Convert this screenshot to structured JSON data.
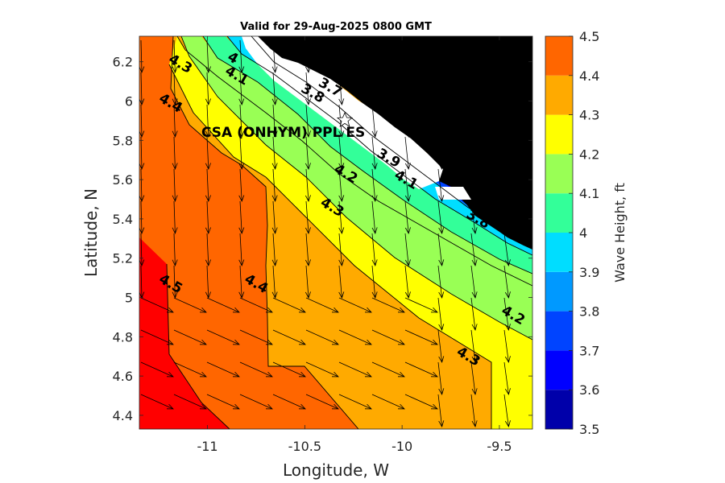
{
  "chart_data": {
    "type": "heatmap",
    "title": "Valid for 29-Aug-2025 0800 GMT",
    "xlabel": "Longitude, W",
    "ylabel": "Latitude, N",
    "xlim": [
      -11.35,
      -9.33
    ],
    "ylim": [
      4.33,
      6.33
    ],
    "x_ticks": [
      -11,
      -10.5,
      -10,
      -9.5
    ],
    "x_tick_labels": [
      "-11",
      "-10.5",
      "-10",
      "-9.5"
    ],
    "y_ticks": [
      4.4,
      4.6,
      4.8,
      5,
      5.2,
      5.4,
      5.6,
      5.8,
      6,
      6.2
    ],
    "y_tick_labels": [
      "4.4",
      "4.6",
      "4.8",
      "5",
      "5.2",
      "5.4",
      "5.6",
      "5.8",
      "6",
      "6.2"
    ],
    "colorbar": {
      "label": "Wave Height, ft",
      "levels": [
        3.5,
        3.6,
        3.7,
        3.8,
        3.9,
        4,
        4.1,
        4.2,
        4.3,
        4.4,
        4.5
      ],
      "tick_labels": [
        "3.5",
        "3.6",
        "3.7",
        "3.8",
        "3.9",
        "4",
        "4.1",
        "4.2",
        "4.3",
        "4.4",
        "4.5"
      ],
      "colors": [
        "#0000aa",
        "#0000ff",
        "#0044ff",
        "#0099ff",
        "#00ddff",
        "#33ff99",
        "#99ff55",
        "#ffff00",
        "#ffaa00",
        "#ff6600",
        "#ff0000"
      ]
    },
    "land_color": "#000000",
    "grid": false,
    "station": {
      "name": "CSA (ONHYM) PPL ES",
      "lon": -10.3,
      "lat": 5.91,
      "marker": "star-icon"
    },
    "contour_labels": [
      {
        "text": "4.3",
        "lon": -11.15,
        "lat": 6.17
      },
      {
        "text": "4",
        "lon": -10.88,
        "lat": 6.2
      },
      {
        "text": "4.1",
        "lon": -10.86,
        "lat": 6.11
      },
      {
        "text": "3.8",
        "lon": -10.47,
        "lat": 6.02
      },
      {
        "text": "3.7",
        "lon": -10.38,
        "lat": 6.05
      },
      {
        "text": "4.4",
        "lon": -11.2,
        "lat": 5.97
      },
      {
        "text": "3.9",
        "lon": -10.08,
        "lat": 5.69
      },
      {
        "text": "4.2",
        "lon": -10.3,
        "lat": 5.61
      },
      {
        "text": "4.1",
        "lon": -9.99,
        "lat": 5.58
      },
      {
        "text": "4.3",
        "lon": -10.37,
        "lat": 5.44
      },
      {
        "text": "3.6",
        "lon": -9.55,
        "lat": 5.41
      },
      {
        "text": "3.8",
        "lon": -9.62,
        "lat": 5.38
      },
      {
        "text": "4.5",
        "lon": -11.2,
        "lat": 5.05
      },
      {
        "text": "4.4",
        "lon": -10.76,
        "lat": 5.05
      },
      {
        "text": "4.2",
        "lon": -9.44,
        "lat": 4.89
      },
      {
        "text": "4.3",
        "lon": -9.67,
        "lat": 4.68
      }
    ]
  }
}
